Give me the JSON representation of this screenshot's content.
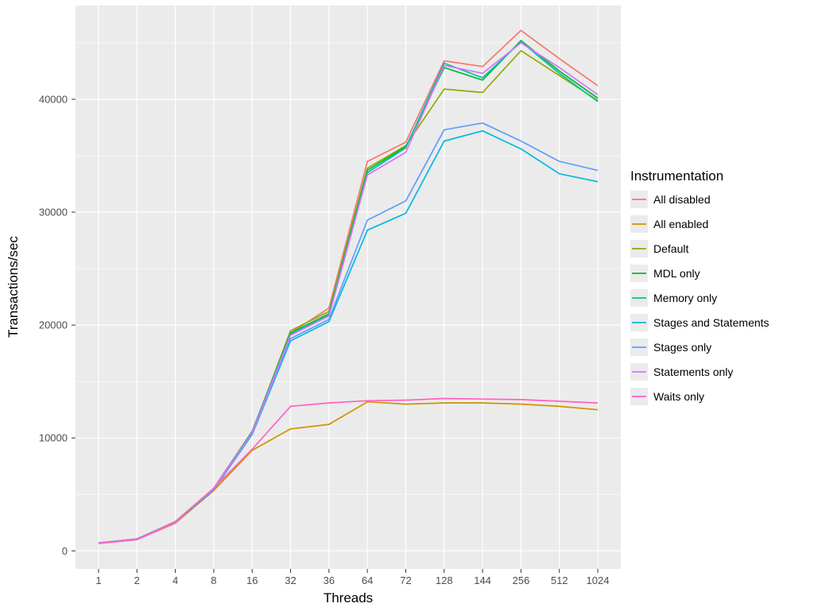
{
  "chart_data": {
    "type": "line",
    "title": "",
    "xlabel": "Threads",
    "ylabel": "Transactions/sec",
    "legend_title": "Instrumentation",
    "legend_position": "right",
    "x_scale": "discrete",
    "grid": true,
    "panel_bg": "#EBEBEB",
    "grid_color": "#FFFFFF",
    "tick_color": "#333333",
    "categories": [
      "1",
      "2",
      "4",
      "8",
      "16",
      "32",
      "36",
      "64",
      "72",
      "128",
      "144",
      "256",
      "512",
      "1024"
    ],
    "yticks": [
      0,
      10000,
      20000,
      30000,
      40000
    ],
    "ytick_minor_step": 5000,
    "ylim": [
      -1600,
      48300
    ],
    "series": [
      {
        "name": "All disabled",
        "color": "#F8766D",
        "values": [
          700,
          1050,
          2600,
          5550,
          10600,
          19300,
          21500,
          34500,
          36200,
          43400,
          42900,
          46100,
          43600,
          41200
        ]
      },
      {
        "name": "All enabled",
        "color": "#D39200",
        "values": [
          650,
          1000,
          2450,
          5350,
          8900,
          10800,
          11200,
          13200,
          13000,
          13100,
          13100,
          13000,
          12800,
          12500
        ]
      },
      {
        "name": "Default",
        "color": "#93AA00",
        "values": [
          700,
          1050,
          2550,
          5500,
          10500,
          19500,
          21200,
          33900,
          35900,
          40900,
          40600,
          44300,
          42100,
          39900
        ]
      },
      {
        "name": "MDL only",
        "color": "#00BA38",
        "values": [
          700,
          1050,
          2550,
          5500,
          10550,
          19300,
          21000,
          33700,
          35800,
          42800,
          41700,
          45200,
          42500,
          40100
        ]
      },
      {
        "name": "Memory only",
        "color": "#00C19F",
        "values": [
          700,
          1050,
          2550,
          5500,
          10500,
          19200,
          20900,
          33500,
          35700,
          43200,
          41900,
          45100,
          42300,
          39800
        ]
      },
      {
        "name": "Stages and Statements",
        "color": "#00B9E3",
        "values": [
          680,
          1020,
          2500,
          5400,
          10300,
          18600,
          20300,
          28400,
          29900,
          36300,
          37200,
          35600,
          33400,
          32700
        ]
      },
      {
        "name": "Stages only",
        "color": "#619CFF",
        "values": [
          690,
          1030,
          2520,
          5450,
          10400,
          18800,
          20500,
          29300,
          31000,
          37300,
          37900,
          36300,
          34500,
          33700
        ]
      },
      {
        "name": "Statements only",
        "color": "#DB72FB",
        "values": [
          700,
          1040,
          2540,
          5500,
          10450,
          19100,
          20800,
          33300,
          35300,
          43000,
          42300,
          45000,
          42800,
          40400
        ]
      },
      {
        "name": "Waits only",
        "color": "#FF61C3",
        "values": [
          660,
          1000,
          2480,
          5550,
          9000,
          12800,
          13100,
          13300,
          13350,
          13500,
          13450,
          13400,
          13250,
          13100
        ]
      }
    ]
  }
}
